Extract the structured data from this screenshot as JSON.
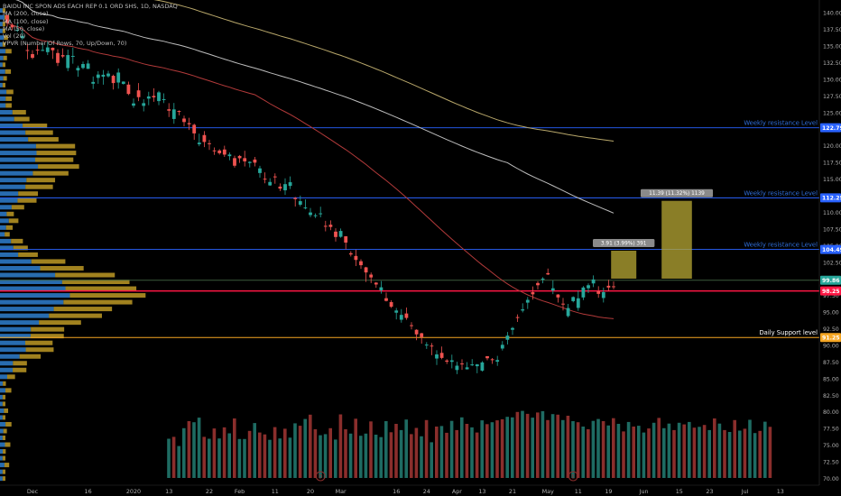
{
  "chart_data": {
    "type": "candlestick",
    "legend": [
      "BAIDU INC SPON ADS EACH REP 0.1 ORD SHS, 1D, NASDAQ",
      "MA (200, close)",
      "MA (100, close)",
      "MA (50, close)",
      "Vol (20)",
      "VPVR (Number Of Rows, 70, Up/Down, 70)"
    ],
    "xaxis_labels": [
      {
        "i": -3,
        "label": "19"
      },
      {
        "i": 5,
        "label": "Dec"
      },
      {
        "i": 16,
        "label": "16"
      },
      {
        "i": 25,
        "label": "2020"
      },
      {
        "i": 32,
        "label": "13"
      },
      {
        "i": 40,
        "label": "22"
      },
      {
        "i": 46,
        "label": "Feb"
      },
      {
        "i": 53,
        "label": "11"
      },
      {
        "i": 60,
        "label": "20"
      },
      {
        "i": 66,
        "label": "Mar"
      },
      {
        "i": 77,
        "label": "16"
      },
      {
        "i": 83,
        "label": "24"
      },
      {
        "i": 89,
        "label": "Apr"
      },
      {
        "i": 94,
        "label": "13"
      },
      {
        "i": 100,
        "label": "21"
      },
      {
        "i": 107,
        "label": "May"
      },
      {
        "i": 113,
        "label": "11"
      },
      {
        "i": 119,
        "label": "19"
      },
      {
        "i": 126,
        "label": "Jun"
      },
      {
        "i": 133,
        "label": "15"
      },
      {
        "i": 139,
        "label": "23"
      },
      {
        "i": 146,
        "label": "Jul"
      },
      {
        "i": 153,
        "label": "13"
      }
    ],
    "yaxis": {
      "min": 68.5,
      "max": 142,
      "ticks": [
        70,
        72.5,
        75,
        77.5,
        80,
        82.5,
        85,
        87.5,
        90,
        92.5,
        95,
        97.5,
        100,
        102.5,
        105,
        107.5,
        110,
        112.5,
        115,
        117.5,
        120,
        122.5,
        125,
        127.5,
        130,
        132.5,
        135,
        137.5,
        140
      ]
    },
    "levels": [
      {
        "price": 122.79,
        "label": "Weekly resistance Level",
        "badge": "122.79",
        "color": "#2962ff",
        "badge_color": "#2962ff"
      },
      {
        "price": 112.25,
        "label": "Weekly resistance Level",
        "badge": "112.25",
        "color": "#2962ff",
        "badge_color": "#2962ff"
      },
      {
        "price": 104.49,
        "label": "Weekly resistance Level",
        "badge": "104.49",
        "color": "#2962ff",
        "badge_color": "#2962ff"
      },
      {
        "price": 99.86,
        "label": "",
        "badge": "99.86",
        "color": "#3a5a3a",
        "badge_color": "#26a69a"
      },
      {
        "price": 98.25,
        "label": "",
        "badge": "98.25",
        "color": "#ff1744",
        "badge_color": "#ff1744"
      },
      {
        "price": 91.25,
        "label": "Daily Support level",
        "badge": "91.25",
        "color": "#f5a623",
        "badge_color": "#f5a623"
      }
    ],
    "target_boxes": [
      {
        "i0": 119.5,
        "i1": 124.5,
        "low": 100.1,
        "high": 104.3,
        "label": "3.91 (3.99%) 391"
      },
      {
        "i0": 129.5,
        "i1": 135.5,
        "low": 100.1,
        "high": 111.8,
        "label": "11.39 (11.32%) 1139"
      }
    ],
    "candles": [
      [
        139.75,
        138.55,
        139.35,
        138.01
      ],
      [
        138.26,
        137.88,
        138.52,
        137.45
      ],
      [
        137.52,
        137.52,
        138.49,
        137.17
      ],
      [
        136.26,
        136.62,
        137.66,
        136.03
      ],
      [
        134.48,
        134.34,
        135.35,
        133.08
      ],
      [
        133.86,
        133.31,
        134.45,
        133.1
      ],
      [
        134.54,
        134.41,
        135.2,
        133.78
      ],
      [
        134.48,
        134.49,
        135.44,
        134.31
      ],
      [
        134.16,
        134.87,
        135.83,
        133.72
      ],
      [
        134.82,
        134.44,
        134.87,
        133.14
      ],
      [
        134.03,
        132.54,
        134.59,
        132.06
      ],
      [
        133.71,
        133.51,
        134.72,
        133.28
      ],
      [
        131.77,
        133.72,
        134.53,
        131.3
      ],
      [
        133.47,
        133.59,
        134.83,
        132.42
      ],
      [
        131.41,
        131.8,
        132.14,
        130.46
      ],
      [
        131.78,
        132.37,
        132.74,
        131.59
      ],
      [
        131.65,
        132.45,
        132.96,
        131.63
      ],
      [
        129.41,
        129.68,
        130.5,
        128.62
      ],
      [
        130.29,
        130.79,
        131.29,
        129.4
      ],
      [
        130.47,
        130.76,
        131.47,
        129.27
      ],
      [
        130.53,
        130.94,
        131.36,
        130.34
      ],
      [
        130.6,
        129.51,
        130.77,
        128.54
      ],
      [
        129.59,
        131.09,
        131.71,
        128.67
      ],
      [
        129.39,
        129.73,
        129.77,
        129.28
      ],
      [
        129.28,
        127.87,
        129.72,
        127.7
      ],
      [
        126.11,
        126.45,
        127.19,
        125.77
      ],
      [
        128.41,
        127.39,
        129.5,
        126.79
      ],
      [
        126.08,
        126.49,
        127.07,
        125.25
      ],
      [
        127.17,
        127.5,
        128.2,
        126.18
      ],
      [
        127.58,
        127.36,
        128.72,
        126.7
      ],
      [
        126.8,
        128.11,
        128.33,
        126.18
      ],
      [
        126.95,
        127.09,
        127.96,
        126.5
      ],
      [
        125.57,
        125.35,
        126.49,
        124.4
      ],
      [
        124.11,
        125.55,
        126.52,
        123.39
      ],
      [
        125.31,
        125.2,
        125.41,
        124.66
      ],
      [
        124.17,
        123.65,
        124.61,
        122.99
      ],
      [
        123.49,
        123.31,
        124.29,
        122.46
      ],
      [
        123.23,
        121.94,
        123.41,
        120.97
      ],
      [
        120.31,
        120.55,
        121.9,
        120.01
      ],
      [
        121.69,
        120.65,
        122.29,
        119.88
      ],
      [
        120.46,
        120.38,
        120.97,
        119.46
      ],
      [
        119.38,
        119.37,
        119.82,
        118.71
      ],
      [
        119.37,
        118.96,
        119.58,
        118.74
      ],
      [
        119.52,
        118.75,
        120.09,
        118.4
      ],
      [
        118.52,
        118.77,
        119.09,
        117.89
      ],
      [
        118.22,
        117.08,
        118.59,
        116.8
      ],
      [
        118.55,
        118.2,
        118.7,
        117.51
      ],
      [
        118.22,
        117.73,
        119.33,
        116.97
      ],
      [
        117.49,
        117.66,
        117.75,
        116.82
      ],
      [
        118.01,
        117.54,
        118.4,
        116.98
      ],
      [
        115.98,
        116.68,
        117.07,
        115.29
      ],
      [
        115.13,
        115.1,
        116.08,
        114.43
      ],
      [
        114.12,
        114.64,
        115.2,
        114.06
      ],
      [
        115.47,
        115.41,
        115.93,
        114.37
      ],
      [
        113.94,
        113.64,
        114.42,
        113.27
      ],
      [
        113.38,
        114.31,
        115.18,
        112.7
      ],
      [
        114.04,
        114.6,
        115.47,
        113.57
      ],
      [
        112.24,
        112.06,
        112.38,
        110.94
      ],
      [
        111.22,
        111.75,
        112.59,
        110.96
      ],
      [
        110.71,
        110.8,
        112.03,
        110.53
      ],
      [
        109.66,
        110.05,
        110.72,
        109.34
      ],
      [
        109.55,
        109.63,
        109.91,
        109.21
      ],
      [
        109.84,
        109.92,
        110.92,
        109.32
      ],
      [
        108.04,
        107.98,
        108.79,
        107.21
      ],
      [
        108.21,
        107.87,
        108.86,
        107.38
      ],
      [
        107.17,
        106.36,
        107.68,
        105.67
      ],
      [
        106.39,
        107.27,
        107.64,
        106.25
      ],
      [
        106.47,
        105.52,
        106.49,
        104.51
      ],
      [
        103.92,
        103.73,
        104.22,
        103.43
      ],
      [
        103.51,
        102.91,
        104.46,
        101.99
      ],
      [
        102.72,
        102.12,
        103.02,
        101.58
      ],
      [
        101.8,
        101.03,
        101.87,
        99.6
      ],
      [
        100.71,
        100.28,
        101.03,
        99.43
      ],
      [
        99.5,
        99.22,
        99.58,
        98.72
      ],
      [
        98.34,
        98.8,
        99.74,
        97.84
      ],
      [
        97.16,
        96.75,
        98.02,
        96.67
      ],
      [
        96.57,
        95.87,
        96.86,
        95.69
      ],
      [
        94.98,
        95.31,
        95.69,
        93.97
      ],
      [
        93.92,
        94.65,
        95.52,
        93.48
      ],
      [
        94.86,
        94.19,
        95.75,
        93.91
      ],
      [
        93.1,
        93.07,
        93.56,
        92.47
      ],
      [
        92.41,
        91.72,
        92.49,
        90.85
      ],
      [
        91.89,
        91.3,
        91.95,
        90.32
      ],
      [
        90.08,
        90.18,
        90.55,
        89.53
      ],
      [
        90.03,
        89.91,
        90.42,
        88.58
      ],
      [
        88.09,
        88.71,
        89.33,
        87.11
      ],
      [
        88.94,
        88.18,
        89.89,
        87.97
      ],
      [
        87.79,
        87.61,
        88.0,
        87.26
      ],
      [
        87.59,
        87.82,
        88.67,
        86.61
      ],
      [
        86.36,
        87.01,
        87.6,
        85.74
      ],
      [
        87.34,
        87.32,
        87.97,
        86.39
      ],
      [
        86.47,
        86.76,
        87.56,
        86.43
      ],
      [
        87.14,
        87.2,
        88.0,
        86.96
      ],
      [
        86.93,
        87.21,
        87.27,
        85.87
      ],
      [
        86.27,
        87.5,
        87.69,
        86.13
      ],
      [
        88.44,
        88.13,
        88.45,
        87.82
      ],
      [
        87.98,
        87.9,
        88.17,
        87.29
      ],
      [
        87.61,
        87.86,
        88.49,
        86.98
      ],
      [
        89.59,
        90.15,
        90.71,
        89.29
      ],
      [
        90.91,
        91.53,
        92.08,
        90.19
      ],
      [
        92.41,
        92.68,
        92.85,
        91.63
      ],
      [
        94.32,
        94.27,
        94.73,
        93.59
      ],
      [
        95.3,
        95.49,
        96.39,
        95.02
      ],
      [
        96.49,
        96.91,
        97.34,
        95.54
      ],
      [
        98.06,
        97.74,
        98.92,
        96.95
      ],
      [
        99.44,
        99.11,
        99.7,
        98.48
      ],
      [
        99.94,
        100.11,
        100.32,
        99.4
      ],
      [
        100.93,
        100.73,
        101.62,
        100.64
      ],
      [
        98.31,
        98.65,
        99.84,
        97.77
      ],
      [
        97.71,
        97.27,
        97.78,
        96.5
      ],
      [
        96.34,
        96.21,
        97.19,
        95.31
      ],
      [
        94.47,
        95.68,
        96.3,
        94.27
      ],
      [
        96.72,
        97.33,
        97.44,
        96.53
      ],
      [
        95.7,
        97.14,
        98.29,
        95.26
      ],
      [
        97.27,
        98.77,
        98.97,
        96.87
      ],
      [
        98.66,
        99.11,
        99.38,
        97.93
      ],
      [
        99.38,
        99.98,
        100.58,
        98.82
      ],
      [
        98.19,
        97.81,
        98.96,
        97.22
      ],
      [
        97.19,
        98.07,
        98.76,
        96.51
      ],
      [
        99.03,
        98.76,
        99.92,
        98.24
      ],
      [
        98.95,
        98.84,
        99.68,
        98.51
      ]
    ],
    "volumes": [
      [
        14.5,
        1
      ],
      [
        15.2,
        0
      ],
      [
        11.8,
        1
      ],
      [
        18.4,
        1
      ],
      [
        21.0,
        0
      ],
      [
        20.6,
        1
      ],
      [
        22.3,
        1
      ],
      [
        15.2,
        0
      ],
      [
        14.5,
        1
      ],
      [
        18.3,
        0
      ],
      [
        14.6,
        1
      ],
      [
        18.7,
        0
      ],
      [
        16.5,
        1
      ],
      [
        22.0,
        0
      ],
      [
        14.4,
        1
      ],
      [
        14.4,
        1
      ],
      [
        17.4,
        0
      ],
      [
        20.3,
        1
      ],
      [
        16.8,
        0
      ],
      [
        16.1,
        0
      ],
      [
        14.1,
        1
      ],
      [
        18.8,
        0
      ],
      [
        14.6,
        1
      ],
      [
        18.2,
        0
      ],
      [
        14.9,
        1
      ],
      [
        20.2,
        1
      ],
      [
        19.3,
        0
      ],
      [
        21.8,
        1
      ],
      [
        23.4,
        0
      ],
      [
        18.0,
        0
      ],
      [
        15.8,
        1
      ],
      [
        16.2,
        1
      ],
      [
        18.4,
        0
      ],
      [
        14.2,
        1
      ],
      [
        23.5,
        0
      ],
      [
        18.0,
        0
      ],
      [
        16.4,
        1
      ],
      [
        21.9,
        0
      ],
      [
        15.6,
        1
      ],
      [
        16.4,
        1
      ],
      [
        20.9,
        0
      ],
      [
        16.0,
        1
      ],
      [
        15.1,
        1
      ],
      [
        21.0,
        1
      ],
      [
        16.9,
        0
      ],
      [
        20.0,
        0
      ],
      [
        17.7,
        1
      ],
      [
        21.6,
        1
      ],
      [
        16.2,
        0
      ],
      [
        18.5,
        0
      ],
      [
        15.4,
        1
      ],
      [
        21.4,
        0
      ],
      [
        13.2,
        1
      ],
      [
        19.0,
        0
      ],
      [
        19.2,
        1
      ],
      [
        16.7,
        0
      ],
      [
        21.1,
        1
      ],
      [
        17.7,
        0
      ],
      [
        22.4,
        1
      ],
      [
        20.0,
        0
      ],
      [
        18.7,
        1
      ],
      [
        16.8,
        0
      ],
      [
        21.3,
        1
      ],
      [
        19.9,
        0
      ],
      [
        20.6,
        1
      ],
      [
        21.3,
        0
      ],
      [
        21.7,
        0
      ],
      [
        22.6,
        1
      ],
      [
        22.4,
        1
      ],
      [
        24.4,
        0
      ],
      [
        24.8,
        1
      ],
      [
        23.7,
        0
      ],
      [
        22.3,
        1
      ],
      [
        24.2,
        0
      ],
      [
        24.7,
        1
      ],
      [
        21.4,
        0
      ],
      [
        23.6,
        1
      ],
      [
        23.4,
        0
      ],
      [
        21.4,
        1
      ],
      [
        23.0,
        0
      ],
      [
        21.0,
        1
      ],
      [
        20.6,
        0
      ],
      [
        19.0,
        1
      ],
      [
        18.0,
        0
      ],
      [
        21.1,
        1
      ],
      [
        21.8,
        1
      ],
      [
        21.0,
        0
      ],
      [
        19.4,
        1
      ],
      [
        22.1,
        0
      ],
      [
        20.0,
        1
      ],
      [
        17.2,
        0
      ],
      [
        20.7,
        1
      ],
      [
        19.0,
        0
      ],
      [
        19.3,
        1
      ],
      [
        16.8,
        1
      ],
      [
        18.3,
        0
      ],
      [
        20.4,
        1
      ],
      [
        22.2,
        0
      ],
      [
        18.4,
        1
      ],
      [
        20.1,
        1
      ],
      [
        17.7,
        0
      ],
      [
        20.4,
        1
      ],
      [
        19.8,
        0
      ],
      [
        20.7,
        1
      ],
      [
        18.6,
        0
      ],
      [
        18.9,
        1
      ],
      [
        19.6,
        0
      ],
      [
        17.7,
        1
      ],
      [
        22.0,
        0
      ],
      [
        20.1,
        1
      ],
      [
        17.7,
        0
      ],
      [
        17.0,
        1
      ],
      [
        21.4,
        0
      ],
      [
        17.5,
        1
      ],
      [
        18.2,
        0
      ],
      [
        21.5,
        1
      ],
      [
        16.6,
        1
      ],
      [
        17.4,
        0
      ],
      [
        20.8,
        1
      ],
      [
        18.9,
        0
      ]
    ],
    "ma200": [],
    "ma100": [],
    "ma50": [],
    "bottom_markers": [
      {
        "i": 62,
        "symbol": "D"
      },
      {
        "i": 112,
        "symbol": "E"
      }
    ]
  }
}
